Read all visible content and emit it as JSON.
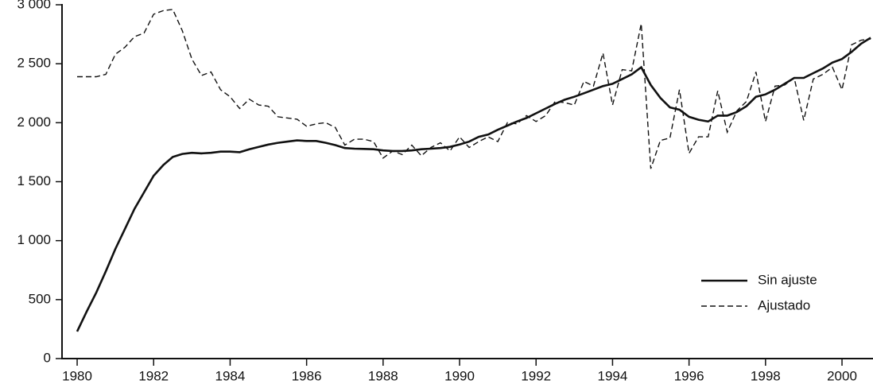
{
  "chart_data": {
    "type": "line",
    "x": [
      1980,
      1980.25,
      1980.5,
      1980.75,
      1981,
      1981.25,
      1981.5,
      1981.75,
      1982,
      1982.25,
      1982.5,
      1982.75,
      1983,
      1983.25,
      1983.5,
      1983.75,
      1984,
      1984.25,
      1984.5,
      1984.75,
      1985,
      1985.25,
      1985.5,
      1985.75,
      1986,
      1986.25,
      1986.5,
      1986.75,
      1987,
      1987.25,
      1987.5,
      1987.75,
      1988,
      1988.25,
      1988.5,
      1988.75,
      1989,
      1989.25,
      1989.5,
      1989.75,
      1990,
      1990.25,
      1990.5,
      1990.75,
      1991,
      1991.25,
      1991.5,
      1991.75,
      1992,
      1992.25,
      1992.5,
      1992.75,
      1993,
      1993.25,
      1993.5,
      1993.75,
      1994,
      1994.25,
      1994.5,
      1994.75,
      1995,
      1995.25,
      1995.5,
      1995.75,
      1996,
      1996.25,
      1996.5,
      1996.75,
      1997,
      1997.25,
      1997.5,
      1997.75,
      1998,
      1998.25,
      1998.5,
      1998.75,
      1999,
      1999.25,
      1999.5,
      1999.75,
      2000,
      2000.25,
      2000.5,
      2000.75
    ],
    "series": [
      {
        "name": "Sin ajuste",
        "color": "#111111",
        "dash": false,
        "values": [
          230,
          400,
          560,
          740,
          930,
          1100,
          1270,
          1410,
          1550,
          1640,
          1710,
          1735,
          1745,
          1740,
          1745,
          1755,
          1755,
          1750,
          1775,
          1795,
          1815,
          1830,
          1840,
          1850,
          1845,
          1845,
          1830,
          1810,
          1785,
          1780,
          1778,
          1775,
          1765,
          1760,
          1760,
          1765,
          1775,
          1780,
          1785,
          1795,
          1815,
          1840,
          1880,
          1900,
          1940,
          1975,
          2010,
          2040,
          2080,
          2120,
          2160,
          2195,
          2220,
          2250,
          2280,
          2310,
          2330,
          2370,
          2410,
          2470,
          2320,
          2210,
          2130,
          2110,
          2050,
          2025,
          2010,
          2060,
          2060,
          2090,
          2140,
          2220,
          2240,
          2280,
          2330,
          2380,
          2380,
          2420,
          2460,
          2510,
          2540,
          2600,
          2670,
          2720
        ]
      },
      {
        "name": "Ajustado",
        "color": "#111111",
        "dash": true,
        "values": [
          2390,
          2390,
          2390,
          2410,
          2580,
          2640,
          2730,
          2760,
          2920,
          2950,
          2960,
          2780,
          2540,
          2400,
          2430,
          2280,
          2220,
          2120,
          2200,
          2150,
          2140,
          2050,
          2040,
          2030,
          1970,
          1990,
          2000,
          1960,
          1810,
          1860,
          1860,
          1840,
          1700,
          1760,
          1730,
          1810,
          1720,
          1790,
          1830,
          1760,
          1880,
          1790,
          1840,
          1880,
          1840,
          2000,
          1990,
          2060,
          2010,
          2060,
          2180,
          2170,
          2150,
          2350,
          2310,
          2590,
          2150,
          2450,
          2440,
          2840,
          1610,
          1850,
          1870,
          2280,
          1740,
          1880,
          1880,
          2270,
          1920,
          2100,
          2180,
          2430,
          2010,
          2310,
          2320,
          2380,
          2020,
          2370,
          2410,
          2470,
          2280,
          2660,
          2700,
          2710
        ]
      }
    ],
    "xlim": [
      1979.6,
      2000.8
    ],
    "xticks": [
      1980,
      1982,
      1984,
      1986,
      1988,
      1990,
      1992,
      1994,
      1996,
      1998,
      2000
    ],
    "ylim": [
      0,
      3000
    ],
    "yticks": [
      0,
      500,
      {
        "value": 1000,
        "label": "1 000"
      },
      {
        "value": 1500,
        "label": "1 500"
      },
      {
        "value": 2000,
        "label": "2 000"
      },
      {
        "value": 2500,
        "label": "2 500"
      },
      {
        "value": 3000,
        "label": "3 000"
      }
    ],
    "legend": "lower-right"
  }
}
